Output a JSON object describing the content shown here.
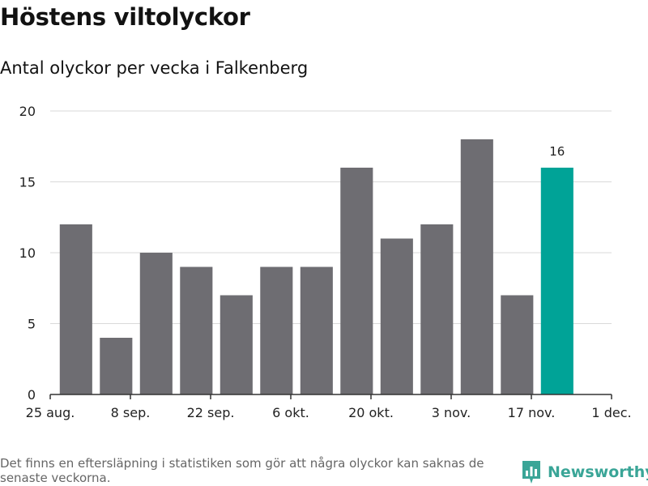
{
  "header": {
    "title": "Höstens viltolyckor",
    "subtitle": "Antal olyckor per vecka i Falkenberg"
  },
  "footer": {
    "note": "Det finns en eftersläpning i statistiken som gör att några olyckor kan saknas de senaste veckorna.",
    "brand": "Newsworthy"
  },
  "colors": {
    "bar": "#6e6d72",
    "highlight": "#00a397",
    "grid": "#d9d9d9",
    "axis": "#333333",
    "brand": "#3aa597"
  },
  "chart_data": {
    "type": "bar",
    "title": "Höstens viltolyckor",
    "subtitle": "Antal olyckor per vecka i Falkenberg",
    "xlabel": "",
    "ylabel": "",
    "x_axis": {
      "range": [
        "2019-08-25",
        "2019-12-01"
      ],
      "ticks": [
        {
          "date": "2019-08-25",
          "label": "25 aug."
        },
        {
          "date": "2019-09-08",
          "label": "8 sep."
        },
        {
          "date": "2019-09-22",
          "label": "22 sep."
        },
        {
          "date": "2019-10-06",
          "label": "6 okt."
        },
        {
          "date": "2019-10-20",
          "label": "20 okt."
        },
        {
          "date": "2019-11-03",
          "label": "3 nov."
        },
        {
          "date": "2019-11-17",
          "label": "17 nov."
        },
        {
          "date": "2019-12-01",
          "label": "1 dec."
        }
      ]
    },
    "ylim": [
      0,
      20
    ],
    "yticks": [
      0,
      5,
      10,
      15,
      20
    ],
    "grid": true,
    "weeks": [
      "2019-08-26",
      "2019-09-02",
      "2019-09-09",
      "2019-09-16",
      "2019-09-23",
      "2019-09-30",
      "2019-10-07",
      "2019-10-14",
      "2019-10-21",
      "2019-10-28",
      "2019-11-04",
      "2019-11-11",
      "2019-11-18"
    ],
    "values": [
      12,
      4,
      10,
      9,
      7,
      9,
      9,
      16,
      11,
      12,
      18,
      7,
      16
    ],
    "highlight_index": 12,
    "data_labels": [
      {
        "index": 12,
        "text": "16"
      }
    ]
  }
}
